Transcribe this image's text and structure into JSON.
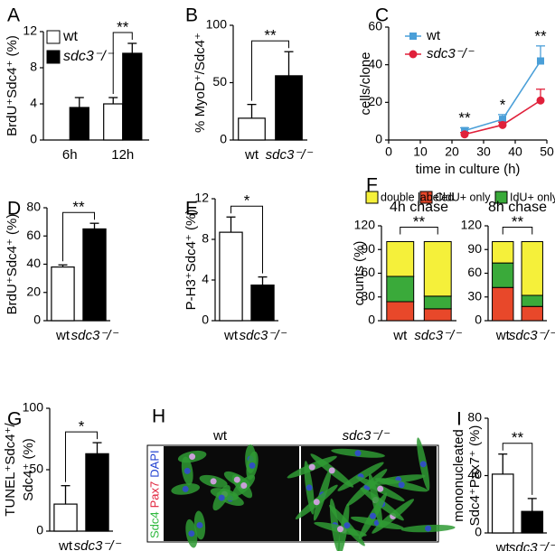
{
  "chart_data": [
    {
      "type": "bar",
      "panel": "A",
      "ylabel": "BrdU⁺Sdc4⁺ (%)",
      "categories": [
        "6h",
        "12h"
      ],
      "series": [
        {
          "name": "wt",
          "color": "#ffffff",
          "values": [
            null,
            4.0
          ],
          "errors": [
            null,
            0.7
          ]
        },
        {
          "name": "sdc3⁻/⁻",
          "color": "#000000",
          "values": [
            3.6,
            9.6
          ],
          "errors": [
            1.1,
            1.1
          ]
        }
      ],
      "significance": [
        null,
        "**"
      ],
      "ylim": [
        0,
        12
      ],
      "yticks": [
        0,
        4,
        8,
        12
      ],
      "legend": true
    },
    {
      "type": "bar",
      "panel": "B",
      "ylabel": "% MyoD⁺/Sdc4⁺",
      "categories": [
        "wt",
        "sdc3⁻/⁻"
      ],
      "values": [
        19,
        56
      ],
      "errors": [
        12,
        21
      ],
      "colors": [
        "#ffffff",
        "#000000"
      ],
      "significance": "**",
      "ylim": [
        0,
        100
      ],
      "yticks": [
        0,
        50,
        100
      ]
    },
    {
      "type": "line",
      "panel": "C",
      "ylabel": "cells/clone",
      "xlabel": "time in culture (h)",
      "x": [
        24,
        36,
        48
      ],
      "series": [
        {
          "name": "wt",
          "color": "#4a9fd8",
          "marker": "square",
          "values": [
            5,
            11,
            42
          ],
          "errors": [
            1.5,
            2.5,
            8
          ]
        },
        {
          "name": "sdc3⁻/⁻",
          "color": "#e0203a",
          "marker": "circle",
          "values": [
            3,
            8,
            21
          ],
          "errors": [
            1,
            1.5,
            6
          ]
        }
      ],
      "significance": [
        "**",
        "*",
        "**"
      ],
      "xlim": [
        0,
        50
      ],
      "xticks": [
        0,
        10,
        20,
        30,
        40,
        50
      ],
      "ylim": [
        0,
        60
      ],
      "yticks": [
        0,
        20,
        40,
        60
      ],
      "legend": true
    },
    {
      "type": "bar",
      "panel": "D",
      "ylabel": "BrdU⁺Sdc4⁺ (%)",
      "categories": [
        "wt",
        "sdc3⁻/⁻"
      ],
      "values": [
        38,
        65
      ],
      "errors": [
        1.5,
        4
      ],
      "colors": [
        "#ffffff",
        "#000000"
      ],
      "significance": "**",
      "ylim": [
        0,
        80
      ],
      "yticks": [
        0,
        20,
        40,
        60,
        80
      ]
    },
    {
      "type": "bar",
      "panel": "E",
      "ylabel": "P-H3⁺Sdc4⁺ (%)",
      "categories": [
        "wt",
        "sdc3⁻/⁻"
      ],
      "values": [
        8.7,
        3.5
      ],
      "errors": [
        1.5,
        0.8
      ],
      "colors": [
        "#ffffff",
        "#000000"
      ],
      "significance": "*",
      "ylim": [
        0,
        12
      ],
      "yticks": [
        0,
        4,
        8,
        12
      ]
    },
    {
      "type": "stacked_bar",
      "panel": "F",
      "title": "4h chase",
      "ylabel": "counts (%)",
      "categories": [
        "wt",
        "sdc3⁻/⁻"
      ],
      "series": [
        {
          "name": "CldU+ only",
          "color": "#e8482a",
          "values": [
            24,
            15
          ]
        },
        {
          "name": "IdU+ only",
          "color": "#3aaa3a",
          "values": [
            32,
            16
          ]
        },
        {
          "name": "double labeled",
          "color": "#f5f03a",
          "values": [
            44,
            69
          ]
        }
      ],
      "significance": "**",
      "ylim": [
        0,
        120
      ],
      "yticks": [
        0,
        30,
        60,
        90,
        120
      ],
      "legend": true
    },
    {
      "type": "stacked_bar",
      "title": "8h chase",
      "categories": [
        "wt",
        "sdc3⁻/⁻"
      ],
      "series": [
        {
          "name": "CldU+ only",
          "color": "#e8482a",
          "values": [
            42,
            18
          ]
        },
        {
          "name": "IdU+ only",
          "color": "#3aaa3a",
          "values": [
            31,
            14
          ]
        },
        {
          "name": "double labeled",
          "color": "#f5f03a",
          "values": [
            27,
            68
          ]
        }
      ],
      "significance": "**",
      "ylim": [
        0,
        120
      ],
      "yticks": [
        0,
        30,
        60,
        90,
        120
      ]
    },
    {
      "type": "bar",
      "panel": "G",
      "ylabel": [
        "TUNEL⁺Sdc4⁺/",
        "Sdc4⁺ (%)"
      ],
      "categories": [
        "wt",
        "sdc3⁻/⁻"
      ],
      "values": [
        22,
        63
      ],
      "errors": [
        15,
        9
      ],
      "colors": [
        "#ffffff",
        "#000000"
      ],
      "significance": "*",
      "ylim": [
        0,
        100
      ],
      "yticks": [
        0,
        50,
        100
      ]
    },
    {
      "type": "bar",
      "panel": "I",
      "ylabel": [
        "mononucleated",
        "Sdc4⁺Pax7⁺ (%)"
      ],
      "categories": [
        "wt",
        "sdc3⁻/⁻"
      ],
      "values": [
        41,
        15
      ],
      "errors": [
        14,
        9
      ],
      "colors": [
        "#ffffff",
        "#000000"
      ],
      "significance": "**",
      "ylim": [
        0,
        80
      ],
      "yticks": [
        0,
        40,
        80
      ]
    }
  ],
  "image_panel": {
    "panel": "H",
    "labels": [
      "wt",
      "sdc3⁻/⁻"
    ],
    "stains": [
      {
        "text": "Sdc4",
        "color": "#2db83d"
      },
      {
        "text": "Pax7",
        "color": "#e0203a"
      },
      {
        "text": "DAPI",
        "color": "#2040d0"
      }
    ]
  }
}
